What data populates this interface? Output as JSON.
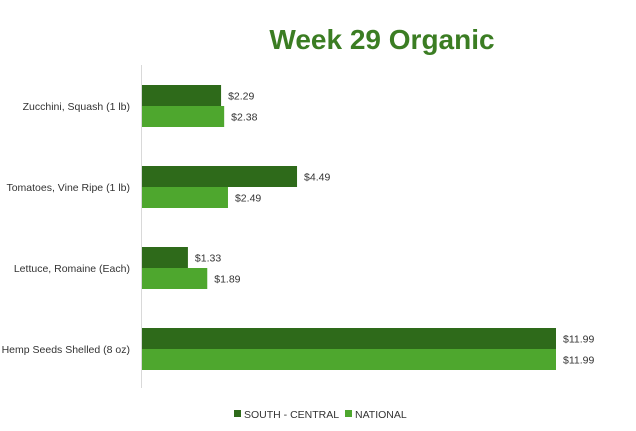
{
  "chart_data": {
    "type": "bar",
    "orientation": "horizontal",
    "title": "Week 29 Organic",
    "categories": [
      "Zucchini, Squash (1 lb)",
      "Tomatoes, Vine Ripe (1 lb)",
      "Lettuce, Romaine (Each)",
      "Hemp Seeds Shelled (8 oz)"
    ],
    "series": [
      {
        "name": "SOUTH - CENTRAL",
        "color": "#2e6a1a",
        "values": [
          2.29,
          4.49,
          1.33,
          11.99
        ],
        "labels": [
          "$2.29",
          "$4.49",
          "$1.33",
          "$11.99"
        ]
      },
      {
        "name": "NATIONAL",
        "color": "#4ea72e",
        "values": [
          2.38,
          2.49,
          1.89,
          11.99
        ],
        "labels": [
          "$2.38",
          "$2.49",
          "$1.89",
          "$11.99"
        ]
      }
    ],
    "xlim": [
      0,
      11.99
    ],
    "grid": false,
    "legend_position": "bottom",
    "title_color": "#3b7d23"
  }
}
